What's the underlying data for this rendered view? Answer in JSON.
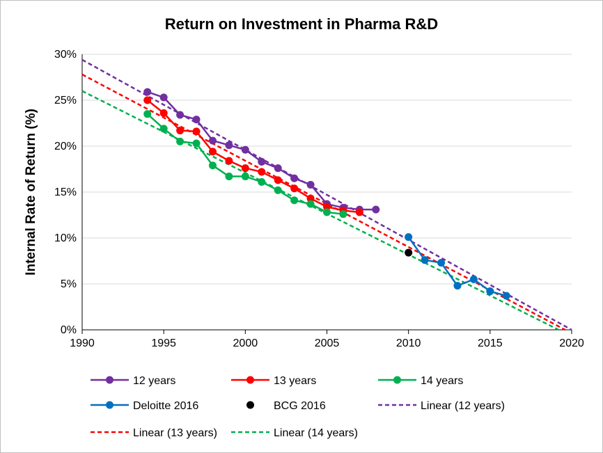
{
  "chart_data": {
    "type": "line",
    "title": "Return on Investment in Pharma R&D",
    "xlabel": "",
    "ylabel": "Internal Rate of Return (%)",
    "xlim": [
      1990,
      2020
    ],
    "ylim": [
      0,
      30
    ],
    "x_ticks": [
      1990,
      1995,
      2000,
      2005,
      2010,
      2015,
      2020
    ],
    "x_tick_labels": [
      "1990",
      "1995",
      "2000",
      "2005",
      "2010",
      "2015",
      "2020"
    ],
    "y_ticks": [
      0,
      5,
      10,
      15,
      20,
      25,
      30
    ],
    "y_tick_labels": [
      "0%",
      "5%",
      "10%",
      "15%",
      "20%",
      "25%",
      "30%"
    ],
    "grid": "horizontal",
    "legend_position": "bottom",
    "series": [
      {
        "name": "12 years",
        "kind": "line-marker",
        "color": "#7030a0",
        "points": [
          [
            1994,
            25.9
          ],
          [
            1995,
            25.3
          ],
          [
            1996,
            23.4
          ],
          [
            1997,
            22.9
          ],
          [
            1998,
            20.6
          ],
          [
            1999,
            20.1
          ],
          [
            2000,
            19.6
          ],
          [
            2001,
            18.3
          ],
          [
            2002,
            17.6
          ],
          [
            2003,
            16.5
          ],
          [
            2004,
            15.8
          ],
          [
            2005,
            13.7
          ],
          [
            2006,
            13.3
          ],
          [
            2007,
            13.1
          ],
          [
            2008,
            13.1
          ]
        ]
      },
      {
        "name": "13 years",
        "kind": "line-marker",
        "color": "#ff0000",
        "points": [
          [
            1994,
            25.0
          ],
          [
            1995,
            23.6
          ],
          [
            1996,
            21.7
          ],
          [
            1997,
            21.6
          ],
          [
            1998,
            19.4
          ],
          [
            1999,
            18.4
          ],
          [
            2000,
            17.6
          ],
          [
            2001,
            17.2
          ],
          [
            2002,
            16.3
          ],
          [
            2003,
            15.4
          ],
          [
            2004,
            14.3
          ],
          [
            2005,
            13.4
          ],
          [
            2006,
            13.0
          ],
          [
            2007,
            12.8
          ]
        ]
      },
      {
        "name": "14 years",
        "kind": "line-marker",
        "color": "#00b050",
        "points": [
          [
            1994,
            23.5
          ],
          [
            1995,
            21.9
          ],
          [
            1996,
            20.5
          ],
          [
            1997,
            20.3
          ],
          [
            1998,
            17.9
          ],
          [
            1999,
            16.7
          ],
          [
            2000,
            16.7
          ],
          [
            2001,
            16.1
          ],
          [
            2002,
            15.2
          ],
          [
            2003,
            14.1
          ],
          [
            2004,
            13.7
          ],
          [
            2005,
            12.8
          ],
          [
            2006,
            12.6
          ]
        ]
      },
      {
        "name": "Deloitte 2016",
        "kind": "line-marker",
        "color": "#0070c0",
        "points": [
          [
            2010,
            10.1
          ],
          [
            2011,
            7.6
          ],
          [
            2012,
            7.3
          ],
          [
            2013,
            4.8
          ],
          [
            2014,
            5.5
          ],
          [
            2015,
            4.2
          ],
          [
            2016,
            3.7
          ]
        ]
      },
      {
        "name": "BCG 2016",
        "kind": "marker",
        "color": "#000000",
        "points": [
          [
            2010,
            8.4
          ]
        ]
      },
      {
        "name": "Linear (12 years)",
        "kind": "dashed",
        "color": "#7030a0",
        "points": [
          [
            1990,
            29.4
          ],
          [
            2020,
            0.0
          ]
        ]
      },
      {
        "name": "Linear (13 years)",
        "kind": "dashed",
        "color": "#ff0000",
        "points": [
          [
            1990,
            27.8
          ],
          [
            2019.6,
            0.0
          ]
        ]
      },
      {
        "name": "Linear (14 years)",
        "kind": "dashed",
        "color": "#00b050",
        "points": [
          [
            1990,
            26.0
          ],
          [
            2019.2,
            0.0
          ]
        ]
      }
    ]
  }
}
